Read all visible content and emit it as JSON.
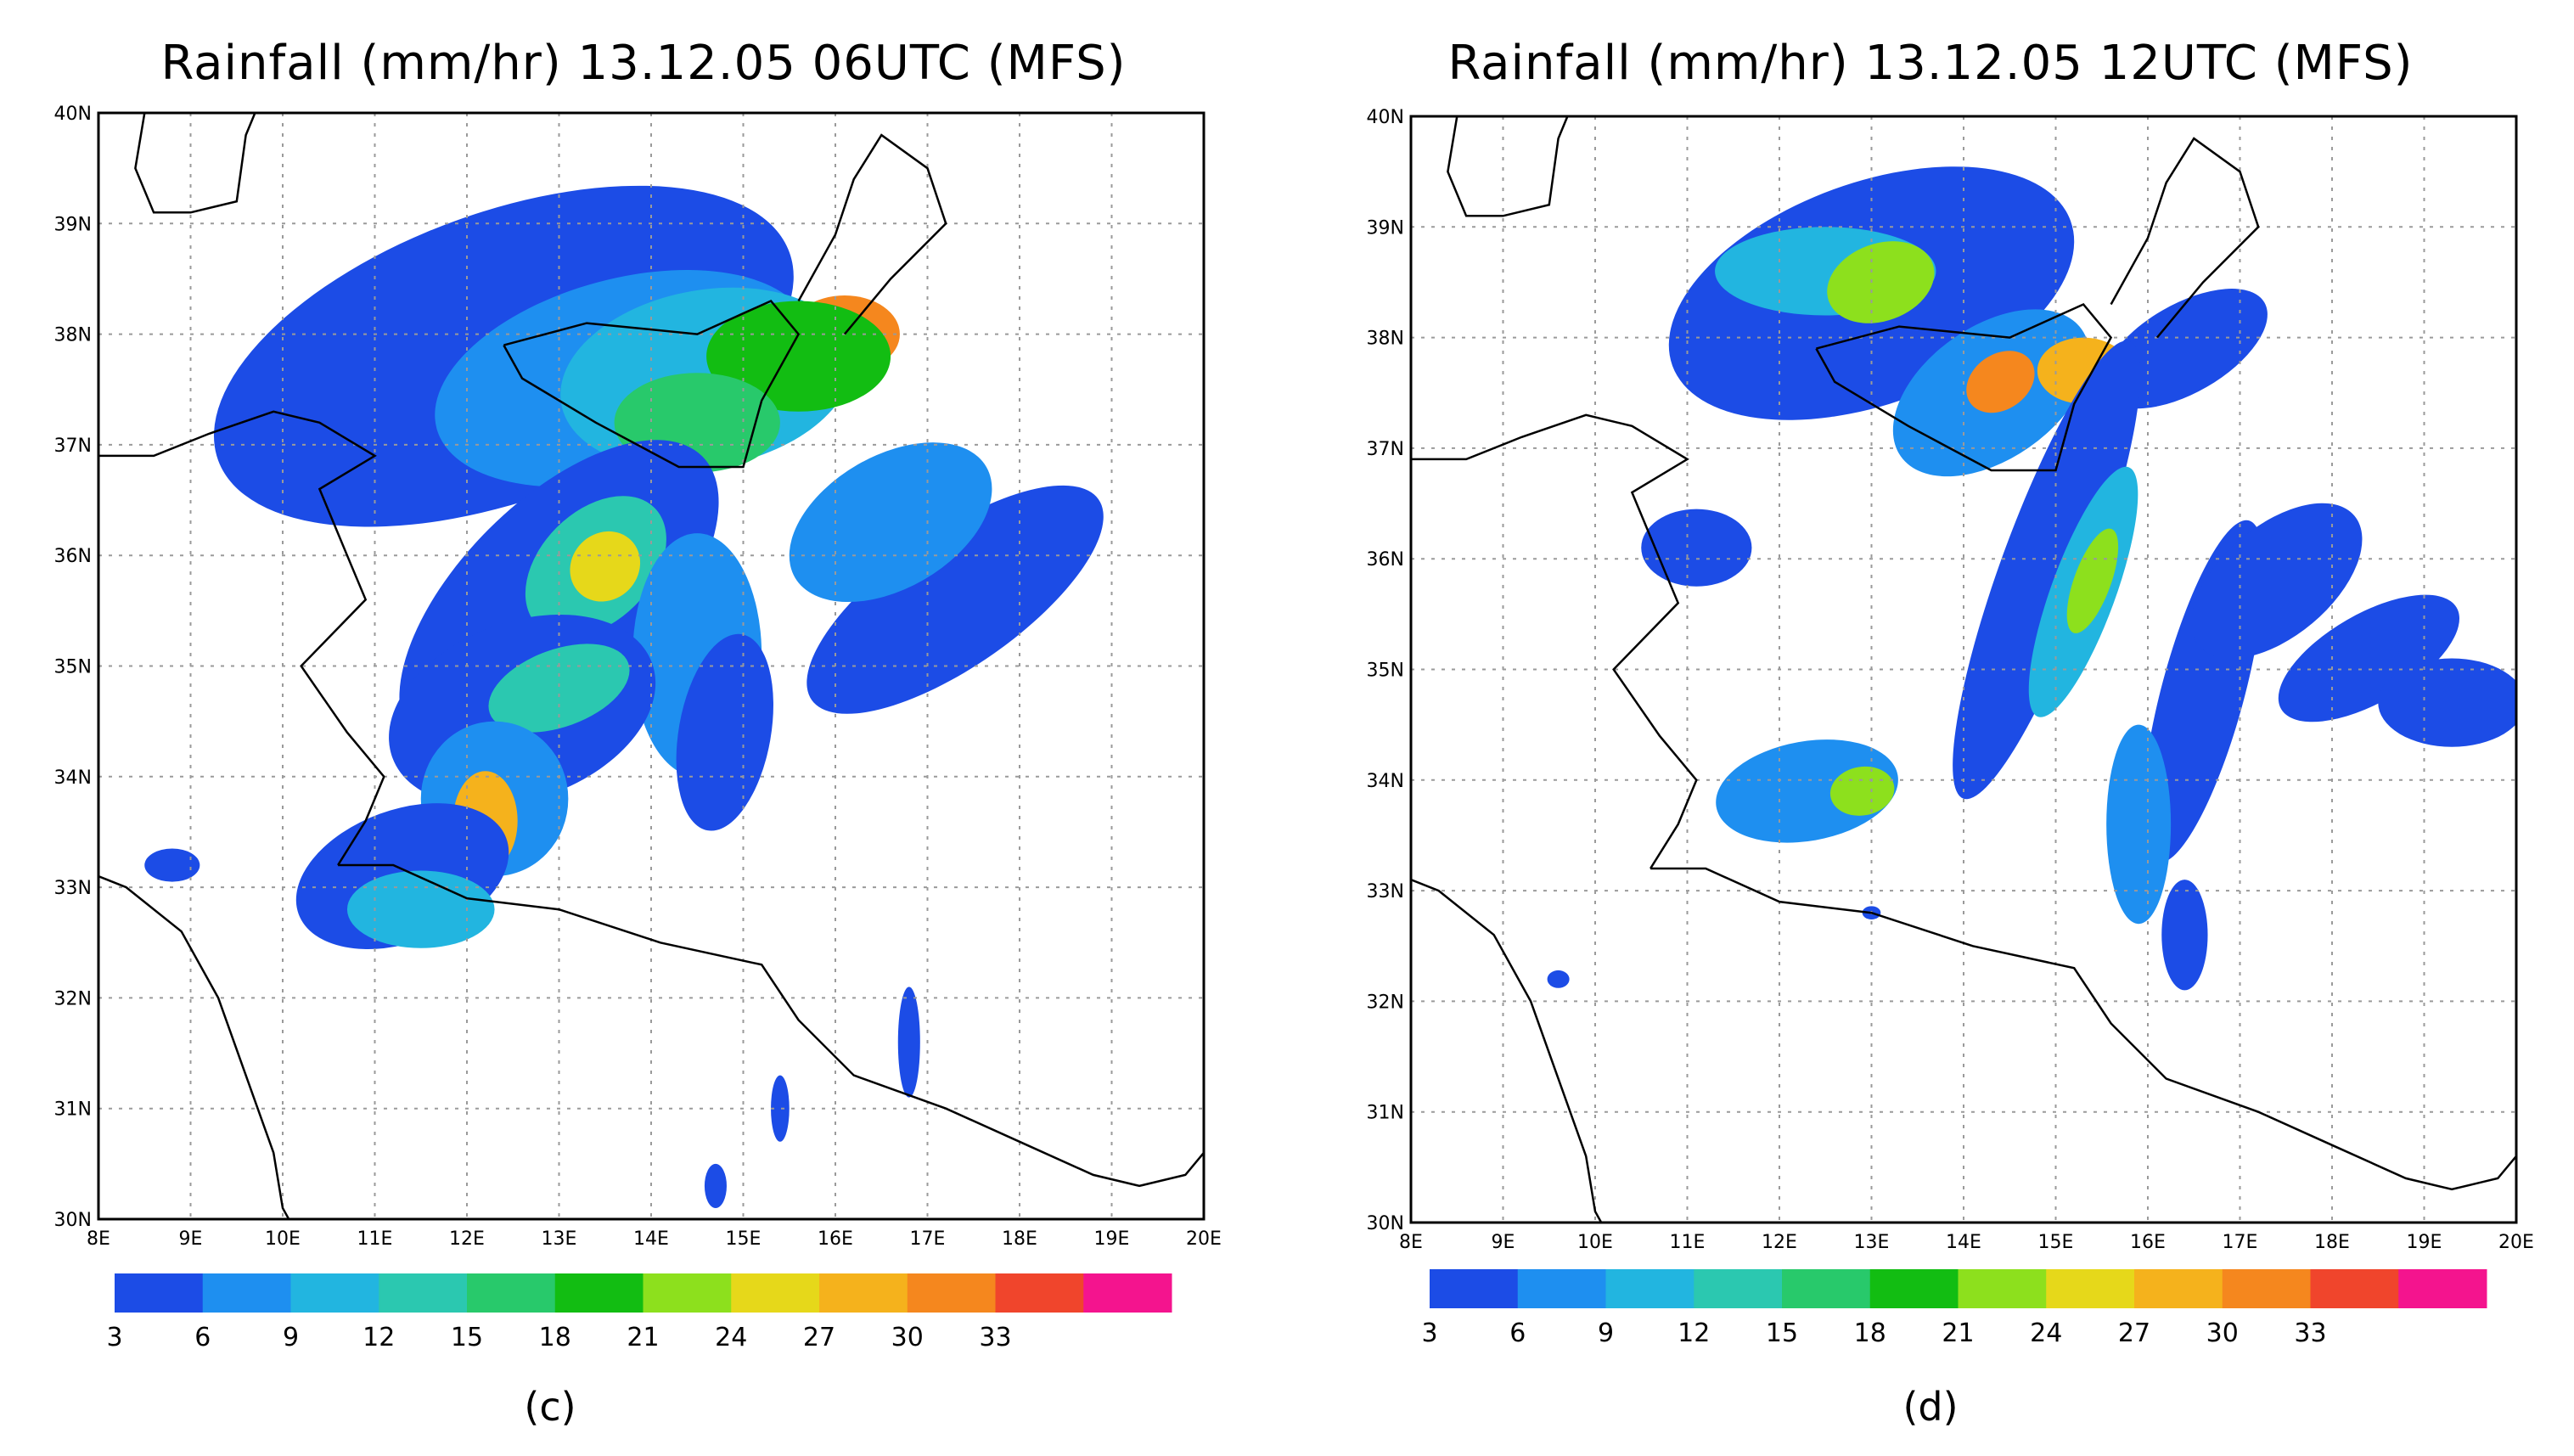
{
  "panels": [
    {
      "id": "c",
      "title": "Rainfall (mm/hr) 13.12.05 06UTC (MFS)",
      "caption": "(c)",
      "lat_labels": [
        "40N",
        "39N",
        "38N",
        "37N",
        "36N",
        "35N",
        "34N",
        "33N",
        "32N",
        "31N",
        "30N"
      ],
      "lon_labels": [
        "8E",
        "9E",
        "10E",
        "11E",
        "12E",
        "13E",
        "14E",
        "15E",
        "16E",
        "17E",
        "18E",
        "19E",
        "20E"
      ]
    },
    {
      "id": "d",
      "title": "Rainfall (mm/hr) 13.12.05 12UTC (MFS)",
      "caption": "(d)",
      "lat_labels": [
        "40N",
        "39N",
        "38N",
        "37N",
        "36N",
        "35N",
        "34N",
        "33N",
        "32N",
        "31N",
        "30N"
      ],
      "lon_labels": [
        "8E",
        "9E",
        "10E",
        "11E",
        "12E",
        "13E",
        "14E",
        "15E",
        "16E",
        "17E",
        "18E",
        "19E",
        "20E"
      ]
    }
  ],
  "colorbar": {
    "labels": [
      "3",
      "6",
      "9",
      "12",
      "15",
      "18",
      "21",
      "24",
      "27",
      "30",
      "33"
    ],
    "colors": [
      "#1c4ce6",
      "#1e8ff0",
      "#22b5e0",
      "#2bc8b0",
      "#28c96b",
      "#12bd12",
      "#8de01d",
      "#e6d81a",
      "#f5b21c",
      "#f5871e",
      "#f0452c",
      "#f4148e"
    ]
  }
}
